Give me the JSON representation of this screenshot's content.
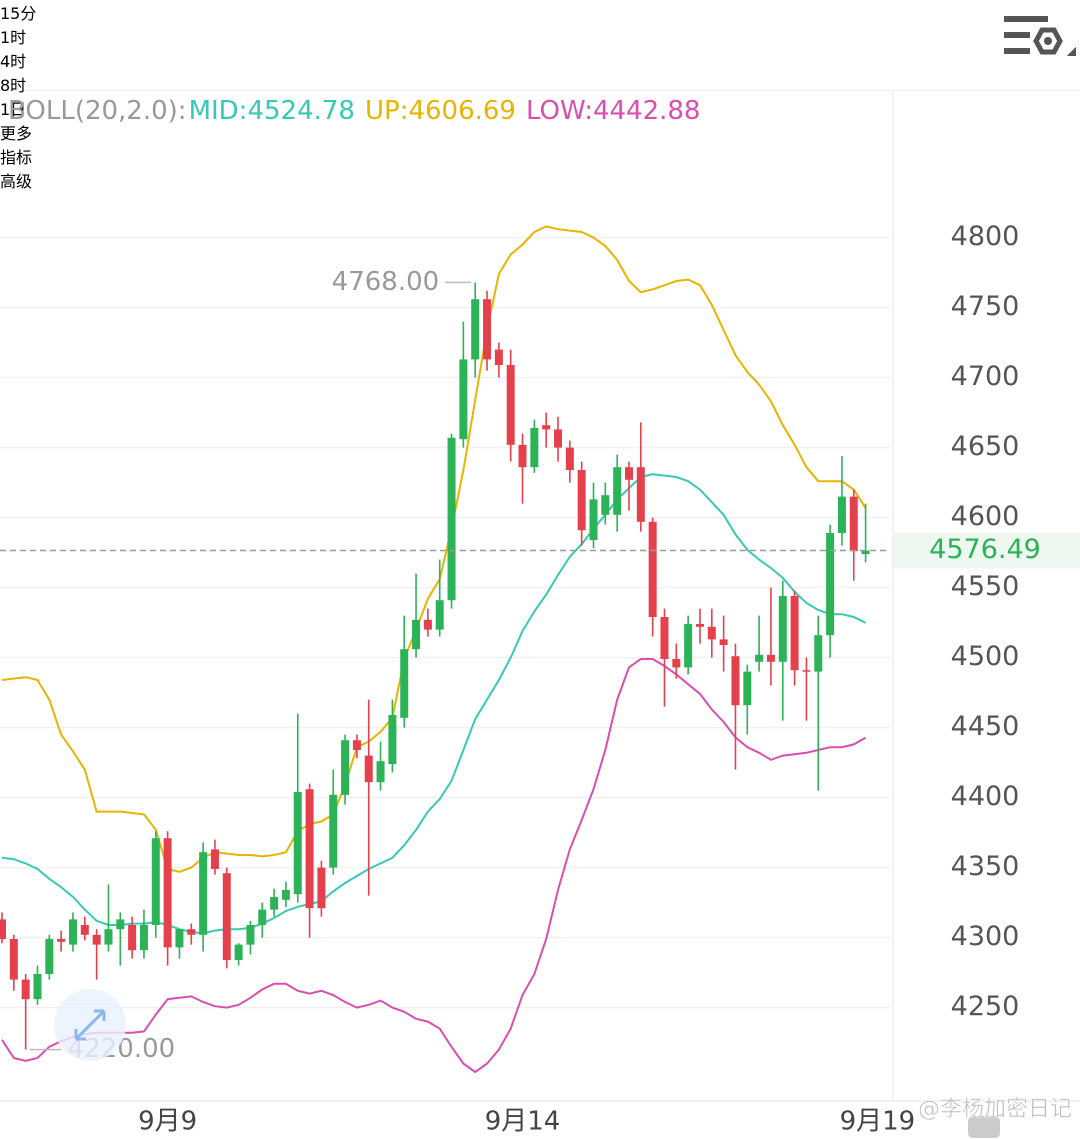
{
  "tabs": {
    "items": [
      "15分",
      "1时",
      "4时",
      "8时",
      "1日",
      "更多",
      "指标",
      "高级"
    ],
    "active": "4时"
  },
  "watermark": "@李杨加密日记",
  "chart_data": {
    "type": "candlestick",
    "indicator": "BOLL(20,2.0):",
    "categories": [
      null,
      null,
      null,
      null,
      null,
      null,
      null,
      null,
      null,
      null,
      null,
      null,
      null,
      null,
      "9月9",
      null,
      null,
      null,
      null,
      null,
      null,
      null,
      null,
      null,
      null,
      null,
      null,
      null,
      null,
      null,
      null,
      null,
      null,
      null,
      null,
      null,
      null,
      null,
      null,
      null,
      null,
      null,
      null,
      null,
      "9月14",
      null,
      null,
      null,
      null,
      null,
      null,
      null,
      null,
      null,
      null,
      null,
      null,
      null,
      null,
      null,
      null,
      null,
      null,
      null,
      null,
      null,
      null,
      null,
      null,
      null,
      null,
      null,
      null,
      null,
      "9月19"
    ],
    "open": [
      4313,
      4299,
      4270,
      4256,
      4274,
      4299,
      4295,
      4309,
      4302,
      4295,
      4306,
      4309,
      4291,
      4309,
      4371,
      4293,
      4306,
      4302,
      4363,
      4346,
      4284,
      4295,
      4309,
      4320,
      4327,
      4331,
      4406,
      4350,
      4350,
      4402,
      4441,
      4430,
      4411,
      4424,
      4457,
      4506,
      4527,
      4520,
      4541,
      4656,
      4713,
      4756,
      4720,
      4709,
      4652,
      4636,
      4666,
      4663,
      4650,
      4634,
      4584,
      4602,
      4602,
      4636,
      4636,
      4597,
      4529,
      4499,
      4493,
      4524,
      4522,
      4513,
      4501,
      4466,
      4497,
      4502,
      4497,
      4544,
      4491,
      4490,
      4516,
      4589,
      4615,
      4574,
      null
    ],
    "high": [
      4318,
      4302,
      4274,
      4280,
      4302,
      4305,
      4318,
      4315,
      4306,
      4338,
      4318,
      4315,
      4320,
      4376,
      4376,
      4306,
      4310,
      4368,
      4370,
      4350,
      4296,
      4312,
      4325,
      4335,
      4340,
      4460,
      4410,
      4355,
      4420,
      4445,
      4445,
      4470,
      4440,
      4470,
      4530,
      4560,
      4535,
      4570,
      4660,
      4740,
      4768,
      4762,
      4725,
      4720,
      4660,
      4670,
      4675,
      4672,
      4655,
      4640,
      4625,
      4625,
      4645,
      4640,
      4668,
      4600,
      4535,
      4510,
      4530,
      4535,
      4535,
      4530,
      4510,
      4495,
      4530,
      4550,
      4555,
      4548,
      4500,
      4530,
      4595,
      4644,
      4620,
      4610,
      null
    ],
    "low": [
      4296,
      4262,
      4220,
      4252,
      4270,
      4290,
      4290,
      4298,
      4270,
      4290,
      4280,
      4285,
      4285,
      4300,
      4280,
      4285,
      4295,
      4290,
      4345,
      4278,
      4280,
      4288,
      4300,
      4315,
      4322,
      4325,
      4300,
      4315,
      4345,
      4395,
      4428,
      4330,
      4405,
      4418,
      4450,
      4500,
      4515,
      4515,
      4535,
      4650,
      4700,
      4705,
      4700,
      4640,
      4610,
      4632,
      4650,
      4640,
      4625,
      4580,
      4578,
      4595,
      4590,
      4605,
      4590,
      4515,
      4465,
      4485,
      4488,
      4510,
      4500,
      4490,
      4420,
      4445,
      4490,
      4480,
      4455,
      4480,
      4455,
      4405,
      4500,
      4580,
      4555,
      4568,
      null
    ],
    "close": [
      4299,
      4270,
      4256,
      4274,
      4299,
      4297,
      4313,
      4302,
      4295,
      4306,
      4313,
      4291,
      4309,
      4371,
      4293,
      4306,
      4302,
      4361,
      4349,
      4284,
      4295,
      4309,
      4320,
      4329,
      4334,
      4404,
      4321,
      4321,
      4402,
      4441,
      4434,
      4411,
      4426,
      4459,
      4506,
      4527,
      4520,
      4541,
      4657,
      4713,
      4756,
      4713,
      4709,
      4652,
      4636,
      4664,
      4663,
      4650,
      4634,
      4591,
      4613,
      4616,
      4636,
      4627,
      4597,
      4529,
      4499,
      4493,
      4524,
      4522,
      4513,
      4509,
      4466,
      4490,
      4502,
      4497,
      4544,
      4491,
      4490,
      4516,
      4589,
      4615,
      4576,
      4576.49,
      null
    ],
    "up_color": "#2db357",
    "down_color": "#e5414c",
    "series": [
      {
        "name": "MID:",
        "color": "#36c9b4",
        "values": [
          4357,
          4356,
          4353,
          4349,
          4342,
          4336,
          4329,
          4320,
          4312,
          4309,
          4309,
          4310,
          4310,
          4311,
          4309,
          4306,
          4304,
          4303,
          4305,
          4306,
          4306,
          4307,
          4310,
          4314,
          4319,
          4322,
          4324,
          4326,
          4333,
          4339,
          4344,
          4349,
          4353,
          4357,
          4366,
          4377,
          4390,
          4399,
          4412,
          4434,
          4456,
          4470,
          4484,
          4500,
          4519,
          4533,
          4545,
          4559,
          4572,
          4581,
          4592,
          4602,
          4613,
          4621,
          4629,
          4631,
          4630,
          4629,
          4626,
          4620,
          4611,
          4602,
          4588,
          4577,
          4570,
          4564,
          4557,
          4547,
          4539,
          4534,
          4531,
          4531,
          4529,
          4524.78,
          null
        ]
      },
      {
        "name": "UP:",
        "color": "#e8b400",
        "values": [
          4484,
          4485,
          4486,
          4484,
          4470,
          4445,
          4433,
          4420,
          4390,
          4390,
          4390,
          4389,
          4388,
          4377,
          4349,
          4347,
          4350,
          4357,
          4361,
          4360,
          4359,
          4359,
          4358,
          4359,
          4361,
          4376,
          4381,
          4383,
          4388,
          4409,
          4436,
          4440,
          4447,
          4457,
          4499,
          4520,
          4542,
          4556,
          4592,
          4634,
          4684,
          4734,
          4774,
          4788,
          4795,
          4804,
          4808,
          4806,
          4805,
          4804,
          4800,
          4794,
          4784,
          4769,
          4761,
          4763,
          4766,
          4769,
          4770,
          4766,
          4752,
          4734,
          4716,
          4704,
          4695,
          4683,
          4666,
          4652,
          4636,
          4626,
          4626,
          4626,
          4620,
          4606.69,
          null
        ]
      },
      {
        "name": "LOW:",
        "color": "#d94fb0",
        "values": [
          4227,
          4214,
          4212,
          4214,
          4222,
          4226,
          4229,
          4231,
          4232,
          4232,
          4232,
          4232,
          4233,
          4245,
          4256,
          4257,
          4258,
          4254,
          4251,
          4250,
          4252,
          4257,
          4263,
          4267,
          4267,
          4262,
          4260,
          4262,
          4259,
          4254,
          4250,
          4252,
          4255,
          4250,
          4247,
          4242,
          4240,
          4235,
          4222,
          4210,
          4204,
          4210,
          4220,
          4235,
          4259,
          4274,
          4299,
          4334,
          4363,
          4384,
          4406,
          4434,
          4470,
          4493,
          4499,
          4499,
          4494,
          4488,
          4481,
          4474,
          4463,
          4454,
          4443,
          4436,
          4432,
          4427,
          4430,
          4431,
          4432,
          4434,
          4436,
          4436,
          4438,
          4442.88,
          null
        ]
      }
    ],
    "ylim": [
      4184,
      4904
    ],
    "yticks": [
      4250,
      4300,
      4350,
      4400,
      4450,
      4500,
      4550,
      4600,
      4650,
      4700,
      4750,
      4800
    ],
    "grid": true,
    "high_label": {
      "value": 4768,
      "label": "4768.00"
    },
    "low_label": {
      "value": 4220,
      "label": "4220.00"
    },
    "last_price": {
      "value": 4576.49,
      "label": "4576.49"
    }
  }
}
